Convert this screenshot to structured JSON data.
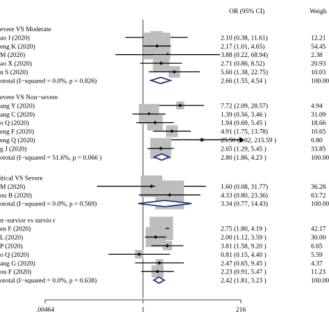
{
  "chart_data": {
    "type": "forest",
    "columns": {
      "ci": "OR (95% CI)",
      "weight": "Weigh"
    },
    "xaxis": {
      "scale": "log",
      "range": [
        0.00464,
        216
      ],
      "ticks": [
        ".00464",
        "1",
        "216"
      ]
    },
    "groups": [
      {
        "name": "evere VS Moderate",
        "studies": [
          {
            "label": "ao J (2020)",
            "or": 2.1,
            "lo": 0.38,
            "hi": 11.61,
            "ci": "2.10 (0.38, 11.61)",
            "weight": "12.21"
          },
          {
            "label": "eng K (2020)",
            "or": 2.17,
            "lo": 1.01,
            "hi": 4.65,
            "ci": "2.17 (1.01, 4.65)",
            "weight": "54.45"
          },
          {
            "label": "M (2020)",
            "or": 3.88,
            "lo": 0.22,
            "hi": 68.94,
            "ci": "3.88 (0.22, 68.94)",
            "weight": "2.38"
          },
          {
            "label": "ao X (2020)",
            "or": 2.71,
            "lo": 0.86,
            "hi": 8.52,
            "ci": "2.71 (0.86, 8.52)",
            "weight": "20.93"
          },
          {
            "label": "n S (2020)",
            "or": 5.6,
            "lo": 1.38,
            "hi": 22.75,
            "ci": "5.60 (1.38, 22.75)",
            "weight": "10.03"
          }
        ],
        "subtotal": {
          "label": "ototal  (I−squared = 0.0%, p = 0.826)",
          "or": 2.66,
          "lo": 1.55,
          "hi": 4.54,
          "ci": "2.66 (1.55, 4.54 )",
          "weight": "100.00"
        }
      },
      {
        "name": "evere VS Non−severe",
        "studies": [
          {
            "label": "ang Y (2020)",
            "or": 7.72,
            "lo": 2.09,
            "hi": 28.57,
            "ci": "7.72 (2.09, 28.57)",
            "weight": "4.94"
          },
          {
            "label": "ang C (2020)",
            "or": 1.39,
            "lo": 0.56,
            "hi": 3.46,
            "ci": "1.39 (0.56, 3.46 )",
            "weight": "31.09"
          },
          {
            "label": "o Q (2020)",
            "or": 1.94,
            "lo": 0.69,
            "hi": 5.45,
            "ci": "1.94 (0.69, 5.45 )",
            "weight": "18.66"
          },
          {
            "label": "eng F (2020)",
            "or": 4.91,
            "lo": 1.75,
            "hi": 13.78,
            "ci": "4.91 (1.75, 13.78)",
            "weight": "10.65"
          },
          {
            "label": "eng Q (2020)",
            "or": 25.5,
            "lo": 3.02,
            "hi": 215.59,
            "ci": "25.50 (3.02, 215.59 )",
            "weight": "0.80",
            "arrow": true
          },
          {
            "label": "g J (2020)",
            "or": 2.65,
            "lo": 1.29,
            "hi": 5.45,
            "ci": "2.65 (1.29, 5.45 )",
            "weight": "33.85"
          }
        ],
        "subtotal": {
          "label": "ototal  (I−squared = 51.6%, p = 0.066 )",
          "or": 2.8,
          "lo": 1.86,
          "hi": 4.23,
          "ci": "2.80 (1.86, 4.23 )",
          "weight": "100.00"
        }
      },
      {
        "name": "itical VS Severe",
        "studies": [
          {
            "label": "M (2020)",
            "or": 1.6,
            "lo": 0.08,
            "hi": 31.77,
            "ci": "1.60 (0.08, 31.77)",
            "weight": "36.28"
          },
          {
            "label": "ou B (2020)",
            "or": 4.33,
            "or_note": "",
            "lo": 0.8,
            "hi": 23.36,
            "ci": "4.33 (0.80, 23.36)",
            "weight": "63.72"
          }
        ],
        "subtotal": {
          "label": "ototal  (I−squared = 0.0%, p = 0.569)",
          "or": 3.34,
          "lo": 0.77,
          "hi": 14.43,
          "ci": "3.34 (0.77, 14.43)",
          "weight": "100.00"
        }
      },
      {
        "name": "n−survior vs survio  r",
        "studies": [
          {
            "label": "en F (2020)",
            "or": 2.75,
            "lo": 1.8,
            "hi": 4.19,
            "ci": "2.75 (1.80, 4.19 )",
            "weight": "42.17"
          },
          {
            "label": "L (2020)",
            "or": 2.0,
            "lo": 1.12,
            "hi": 3.59,
            "ci": "2.00 (1.12, 3.59 )",
            "weight": "30.00"
          },
          {
            "label": "P (2020)",
            "or": 3.81,
            "lo": 1.58,
            "hi": 9.2,
            "ci": "3.81 (1.58, 9.20 )",
            "weight": "6.65"
          },
          {
            "label": "o Q (2020)",
            "or": 0.81,
            "lo": 0.15,
            "hi": 4.4,
            "ci": "0.81 (0.15, 4.40 )",
            "weight": "5.59"
          },
          {
            "label": "ang G (2020)",
            "or": 2.47,
            "lo": 0.65,
            "hi": 9.45,
            "ci": "2.47 (0.65, 9.45 )",
            "weight": "4.37"
          },
          {
            "label": "ou F (2020)",
            "or": 2.23,
            "lo": 0.91,
            "hi": 5.47,
            "ci": "2.23 (0.91, 5.47 )",
            "weight": "11.23"
          }
        ],
        "subtotal": {
          "label": "ototal  (I−squared = 0.0%, p = 0.638)",
          "or": 2.42,
          "lo": 1.81,
          "hi": 3.23,
          "ci": "2.42 (1.81, 3.23 )",
          "weight": "100.00"
        }
      }
    ],
    "colors": {
      "box": "#bdbdbd",
      "diamond": "#1f3a7a",
      "line": "#000000"
    }
  }
}
